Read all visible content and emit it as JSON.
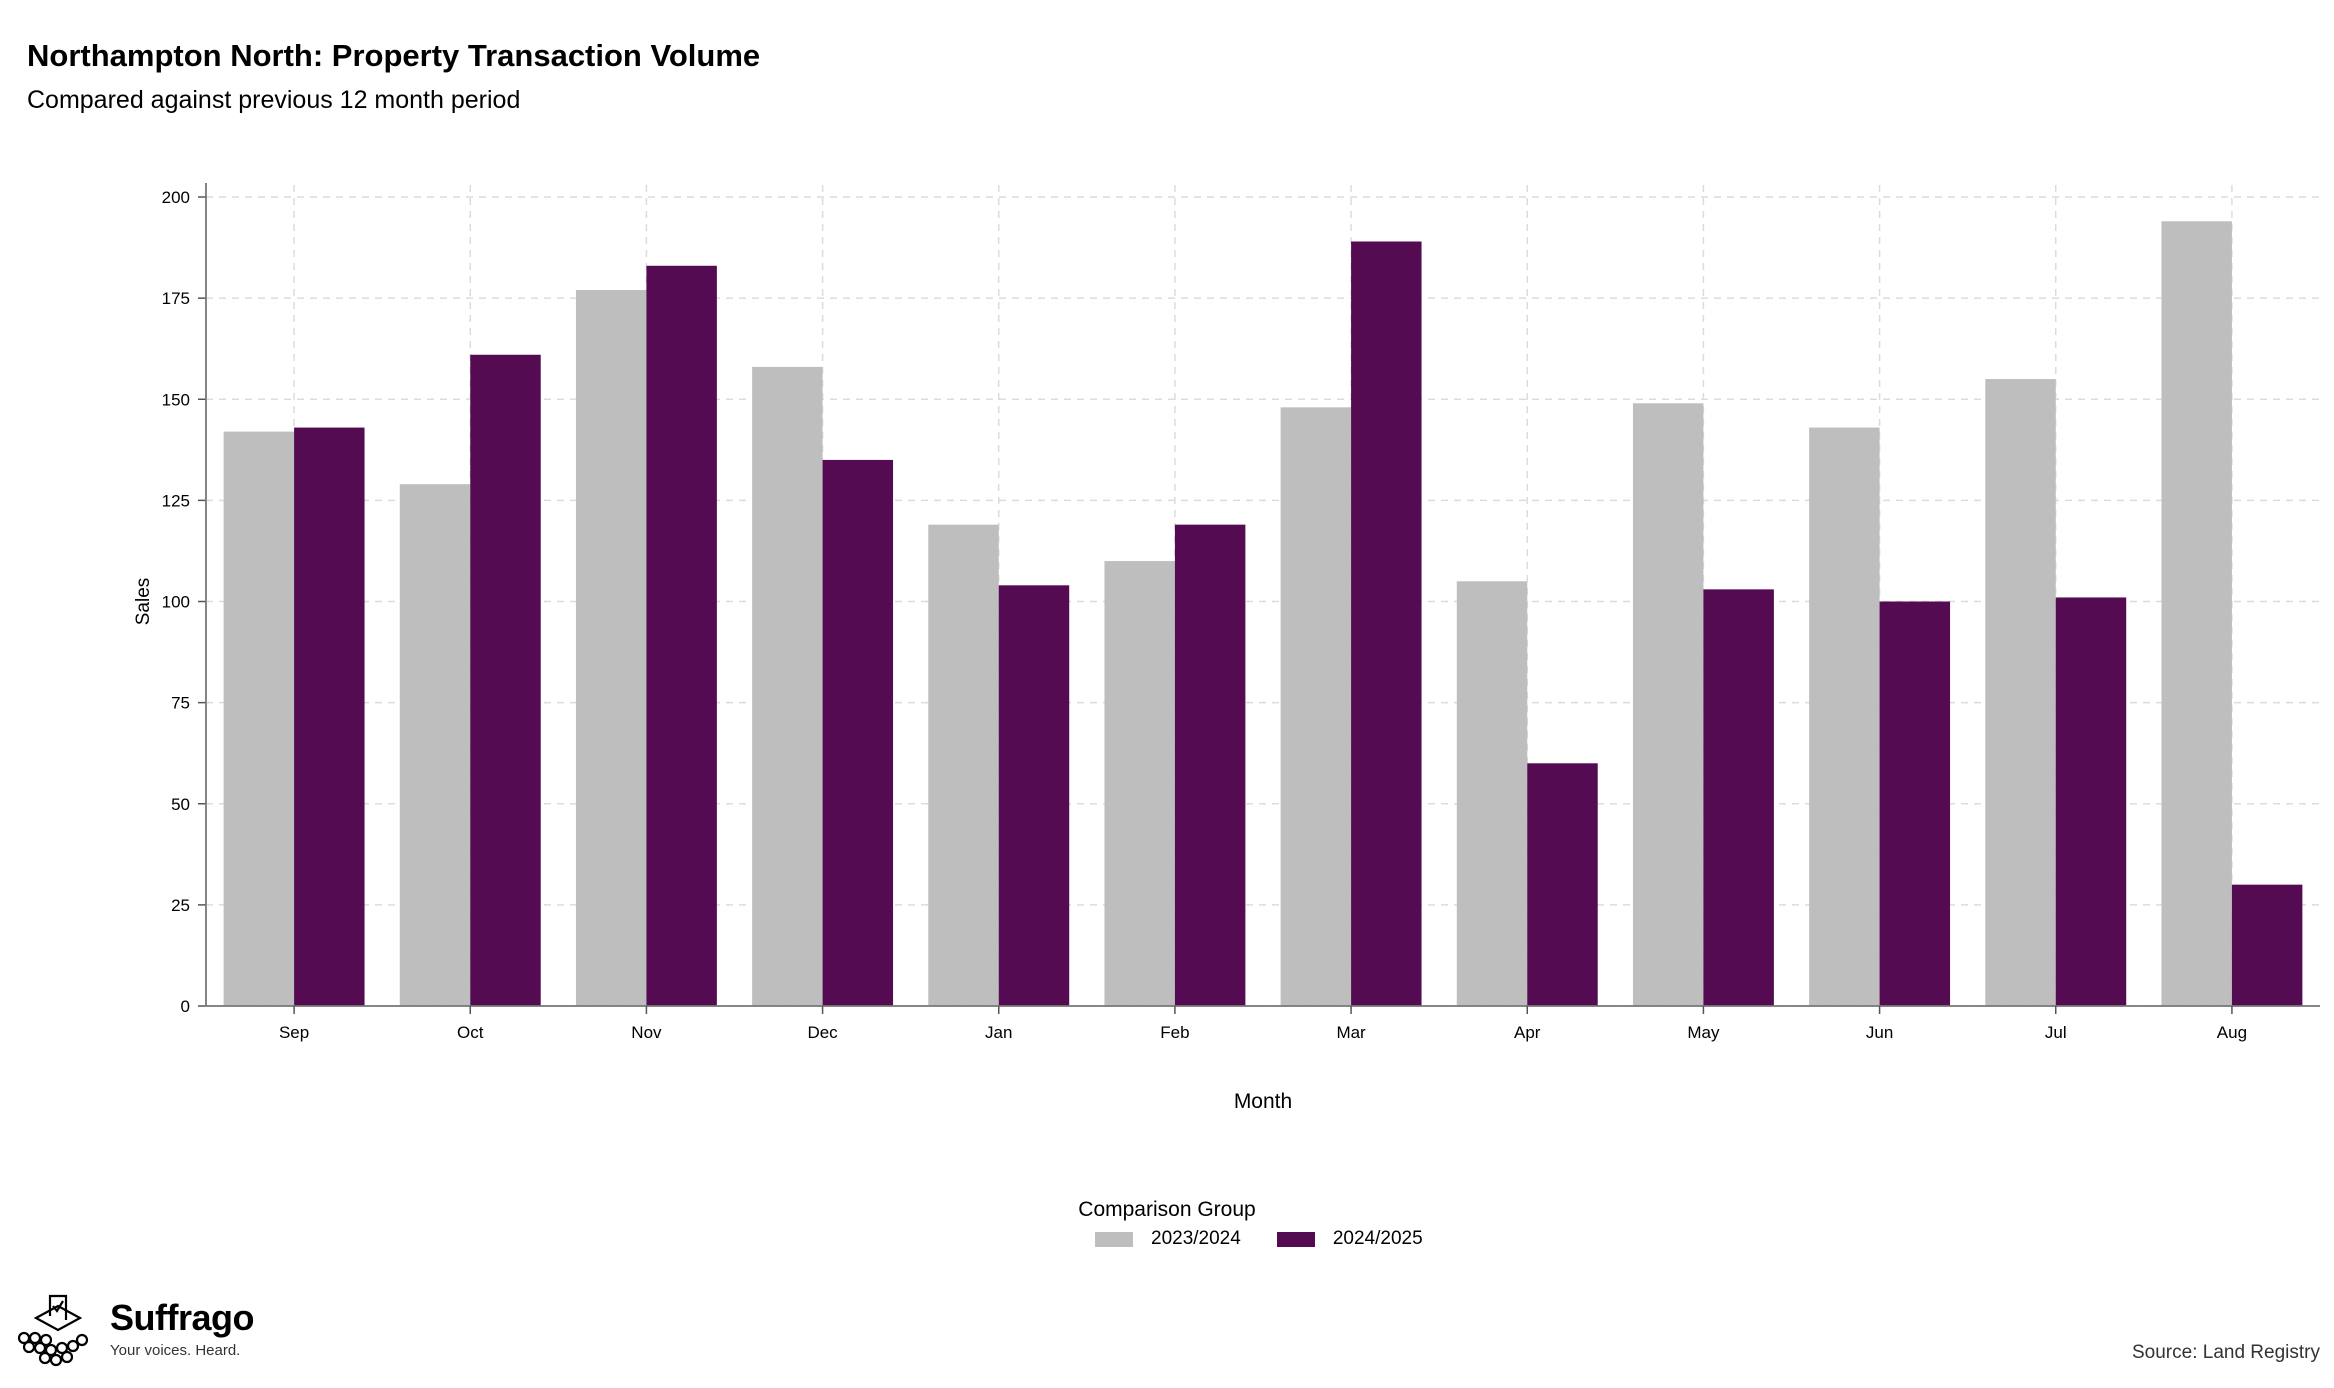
{
  "header": {
    "title": "Northampton North: Property Transaction Volume",
    "subtitle": "Compared against previous 12 month period"
  },
  "chart_data": {
    "type": "bar",
    "title": "Northampton North: Property Transaction Volume",
    "subtitle": "Compared against previous 12 month period",
    "xlabel": "Month",
    "ylabel": "Sales",
    "categories": [
      "Sep",
      "Oct",
      "Nov",
      "Dec",
      "Jan",
      "Feb",
      "Mar",
      "Apr",
      "May",
      "Jun",
      "Jul",
      "Aug"
    ],
    "series": [
      {
        "name": "2023/2024",
        "color": "#bebebe",
        "values": [
          142,
          129,
          177,
          158,
          119,
          110,
          148,
          105,
          149,
          143,
          155,
          194
        ]
      },
      {
        "name": "2024/2025",
        "color": "#540b52",
        "values": [
          143,
          161,
          183,
          135,
          104,
          119,
          189,
          60,
          103,
          100,
          101,
          30
        ]
      }
    ],
    "ylim": [
      0,
      200
    ],
    "yticks": [
      0,
      25,
      50,
      75,
      100,
      125,
      150,
      175,
      200
    ],
    "grid": true,
    "legend": {
      "title": "Comparison Group",
      "position": "bottom"
    }
  },
  "footer": {
    "brand": "Suffrago",
    "tagline": "Your voices. Heard.",
    "source": "Source: Land Registry"
  }
}
